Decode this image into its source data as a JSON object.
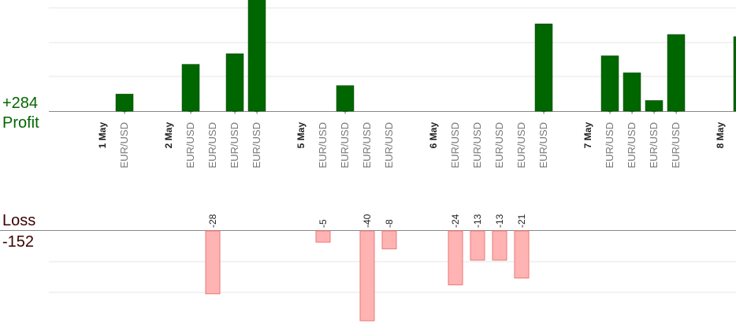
{
  "summary": {
    "profit_total": "+284",
    "profit_label": "Profit",
    "loss_label": "Loss",
    "loss_total": "-152"
  },
  "colors": {
    "profit_bar": "#006600",
    "profit_bar_edge": "#004400",
    "profit_text": "#006600",
    "loss_bar": "#ffb3b3",
    "loss_bar_edge": "#ee7777",
    "loss_text": "#222222",
    "date_text": "#222222",
    "pair_text": "#777777",
    "grid": "#e6e6e6",
    "axis": "#888888"
  },
  "chart_data": {
    "type": "bar",
    "categories": [
      {
        "kind": "date",
        "label": "1 May"
      },
      {
        "kind": "trade",
        "label": "EUR/USD",
        "value": 8,
        "text": "+8"
      },
      {
        "kind": "gap"
      },
      {
        "kind": "date",
        "label": "2 May"
      },
      {
        "kind": "trade",
        "label": "EUR/USD",
        "value": 22,
        "text": "+22"
      },
      {
        "kind": "trade",
        "label": "EUR/USD",
        "value": -28,
        "text": "-28"
      },
      {
        "kind": "trade",
        "label": "EUR/USD",
        "value": 27,
        "text": "+27"
      },
      {
        "kind": "trade",
        "label": "EUR/USD",
        "value": 54,
        "text": "+54"
      },
      {
        "kind": "gap"
      },
      {
        "kind": "date",
        "label": "5 May"
      },
      {
        "kind": "trade",
        "label": "EUR/USD",
        "value": -5,
        "text": "-5"
      },
      {
        "kind": "trade",
        "label": "EUR/USD",
        "value": 12,
        "text": "+12"
      },
      {
        "kind": "trade",
        "label": "EUR/USD",
        "value": -40,
        "text": "-40"
      },
      {
        "kind": "trade",
        "label": "EUR/USD",
        "value": -8,
        "text": "-8"
      },
      {
        "kind": "gap"
      },
      {
        "kind": "date",
        "label": "6 May"
      },
      {
        "kind": "trade",
        "label": "EUR/USD",
        "value": -24,
        "text": "-24"
      },
      {
        "kind": "trade",
        "label": "EUR/USD",
        "value": -13,
        "text": "-13"
      },
      {
        "kind": "trade",
        "label": "EUR/USD",
        "value": -13,
        "text": "-13"
      },
      {
        "kind": "trade",
        "label": "EUR/USD",
        "value": -21,
        "text": "-21"
      },
      {
        "kind": "trade",
        "label": "EUR/USD",
        "value": 41,
        "text": "+41"
      },
      {
        "kind": "gap"
      },
      {
        "kind": "date",
        "label": "7 May"
      },
      {
        "kind": "trade",
        "label": "EUR/USD",
        "value": 26,
        "text": "+26"
      },
      {
        "kind": "trade",
        "label": "EUR/USD",
        "value": 18,
        "text": "+18"
      },
      {
        "kind": "trade",
        "label": "EUR/USD",
        "value": 5,
        "text": "+5"
      },
      {
        "kind": "trade",
        "label": "EUR/USD",
        "value": 36,
        "text": "+36"
      },
      {
        "kind": "gap"
      },
      {
        "kind": "date",
        "label": "8 May"
      },
      {
        "kind": "trade",
        "label": "EUR/USD",
        "value": 35,
        "text": "+35"
      }
    ],
    "profit_axis_max": 36,
    "loss_axis_max": 40,
    "grid": true
  }
}
